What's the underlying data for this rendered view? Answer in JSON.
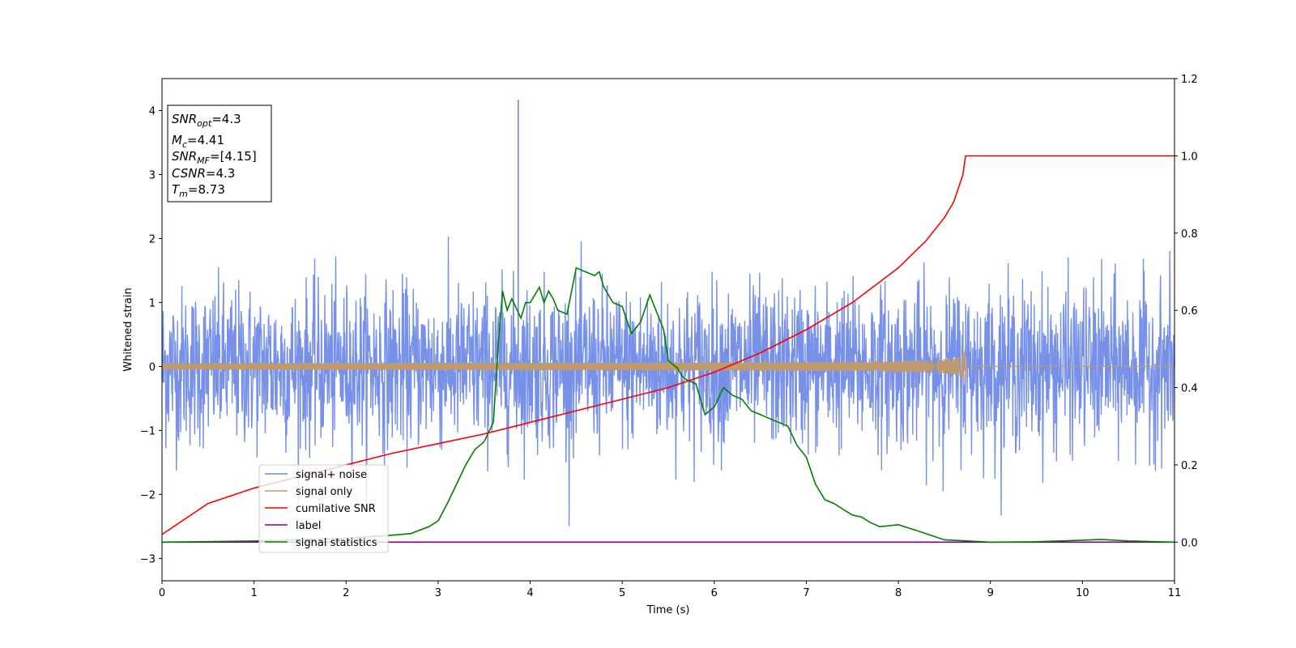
{
  "chart_data": {
    "type": "line",
    "xlabel": "Time (s)",
    "ylabel": "Whitened strain",
    "xlim": [
      0,
      11
    ],
    "ylim": [
      -3.35,
      4.5
    ],
    "y2lim": [
      -0.1,
      1.2
    ],
    "grid": false,
    "legend_position": "lower-left",
    "x_ticks": [
      "0",
      "1",
      "2",
      "3",
      "4",
      "5",
      "6",
      "7",
      "8",
      "9",
      "10",
      "11"
    ],
    "y_ticks": [
      "−3",
      "−2",
      "−1",
      "0",
      "1",
      "2",
      "3",
      "4"
    ],
    "y2_ticks": [
      "0.0",
      "0.2",
      "0.4",
      "0.6",
      "0.8",
      "1.0",
      "1.2"
    ],
    "info_box": {
      "snr_opt": {
        "symbol": "SNR",
        "sub": "opt",
        "value": "=4.3"
      },
      "mc": {
        "symbol": "M",
        "sub": "c",
        "value": "=4.41"
      },
      "snr_mf": {
        "symbol": "SNR",
        "sub": "MF",
        "value": "=[4.15]"
      },
      "csnr": {
        "symbol": "CSNR",
        "value": "=4.3"
      },
      "tm": {
        "symbol": "T",
        "sub": "m",
        "value": "=8.73"
      }
    },
    "series": [
      {
        "name": "signal+ noise",
        "axis": "left",
        "color": "#6b87e6",
        "description_values": {
          "noise_std": 0.62,
          "peak": [
            3.87,
            4.17
          ]
        }
      },
      {
        "name": "signal only",
        "axis": "left",
        "color": "#bf9a6e",
        "merger_time": 8.73,
        "max_amplitude": 0.33
      },
      {
        "name": "cumilative SNR",
        "axis": "right",
        "color": "#ff0000",
        "x": [
          0,
          0.5,
          1,
          1.5,
          2,
          2.5,
          3,
          3.5,
          4,
          4.5,
          5,
          5.5,
          6,
          6.5,
          7,
          7.5,
          8,
          8.3,
          8.5,
          8.6,
          8.7,
          8.73,
          9,
          10,
          11
        ],
        "values": [
          0.02,
          0.1,
          0.14,
          0.17,
          0.2,
          0.23,
          0.255,
          0.28,
          0.31,
          0.34,
          0.37,
          0.4,
          0.44,
          0.49,
          0.55,
          0.62,
          0.71,
          0.78,
          0.84,
          0.88,
          0.95,
          1.0,
          1.0,
          1.0,
          1.0
        ]
      },
      {
        "name": "label",
        "axis": "right",
        "color": "#800080",
        "x": [
          0,
          11
        ],
        "values": [
          0,
          0
        ]
      },
      {
        "name": "signal statistics",
        "axis": "right",
        "color": "#008000",
        "x": [
          0,
          1,
          2,
          2.5,
          2.7,
          2.9,
          3.0,
          3.1,
          3.2,
          3.3,
          3.4,
          3.5,
          3.6,
          3.65,
          3.7,
          3.75,
          3.8,
          3.9,
          3.95,
          4.0,
          4.1,
          4.15,
          4.2,
          4.25,
          4.3,
          4.4,
          4.5,
          4.6,
          4.7,
          4.75,
          4.8,
          4.9,
          5.0,
          5.1,
          5.2,
          5.3,
          5.45,
          5.5,
          5.6,
          5.65,
          5.7,
          5.8,
          5.9,
          6.0,
          6.1,
          6.15,
          6.2,
          6.3,
          6.4,
          6.5,
          6.6,
          6.8,
          6.9,
          7.0,
          7.1,
          7.2,
          7.3,
          7.5,
          7.6,
          7.7,
          7.8,
          8.0,
          8.2,
          8.5,
          9.0,
          9.5,
          10.0,
          10.2,
          10.5,
          11.0
        ],
        "values": [
          0.0,
          0.003,
          0.01,
          0.018,
          0.022,
          0.04,
          0.055,
          0.1,
          0.15,
          0.2,
          0.24,
          0.26,
          0.31,
          0.5,
          0.65,
          0.6,
          0.63,
          0.58,
          0.62,
          0.62,
          0.66,
          0.62,
          0.65,
          0.63,
          0.6,
          0.59,
          0.71,
          0.7,
          0.69,
          0.7,
          0.66,
          0.62,
          0.61,
          0.54,
          0.57,
          0.64,
          0.55,
          0.47,
          0.45,
          0.43,
          0.42,
          0.41,
          0.33,
          0.35,
          0.4,
          0.39,
          0.38,
          0.37,
          0.34,
          0.33,
          0.32,
          0.3,
          0.25,
          0.22,
          0.15,
          0.11,
          0.1,
          0.07,
          0.065,
          0.05,
          0.04,
          0.045,
          0.03,
          0.006,
          0.0,
          0.001,
          0.005,
          0.007,
          0.003,
          0.0
        ]
      }
    ]
  }
}
